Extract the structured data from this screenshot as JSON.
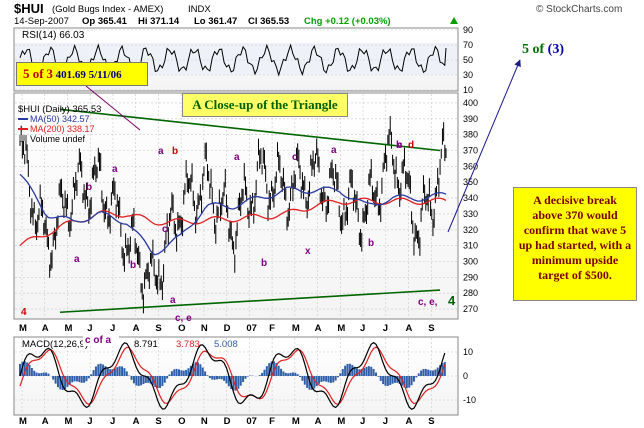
{
  "header": {
    "symbol": "$HUI",
    "name": "(Gold Bugs Index - AMEX)",
    "exchange": "INDX",
    "date": "14-Sep-2007",
    "open": "Op 365.41",
    "high": "Hi 371.14",
    "low": "Lo 361.47",
    "close": "Cl 365.53",
    "change": "Chg +0.12 (+0.03%)",
    "source": "© StockCharts.com",
    "change_color": "#00a000"
  },
  "rsi_panel": {
    "label": "RSI(14) 66.03",
    "ticks": [
      "90",
      "70",
      "50",
      "30",
      "10"
    ]
  },
  "price_panel": {
    "legend_main": "$HUI (Daily) 365.53",
    "legend_ma50": "MA(50) 342.57",
    "legend_ma200": "MA(200) 338.17",
    "legend_volume": "Volume undef",
    "y_ticks": [
      "400",
      "390",
      "380",
      "370",
      "360",
      "350",
      "340",
      "330",
      "320",
      "310",
      "300",
      "290",
      "280",
      "270"
    ],
    "x_ticks": [
      "M",
      "A",
      "M",
      "J",
      "J",
      "A",
      "S",
      "O",
      "N",
      "D",
      "07",
      "F",
      "M",
      "A",
      "M",
      "J",
      "J",
      "A",
      "S"
    ]
  },
  "macd_panel": {
    "label": "MACD(12,26,9)",
    "v1": "8.791",
    "v2": "3.783",
    "v3": "5.008",
    "ticks": [
      "10",
      "0",
      "-10"
    ],
    "x_ticks": [
      "M",
      "A",
      "M",
      "J",
      "J",
      "A",
      "S",
      "O",
      "N",
      "D",
      "07",
      "F",
      "M",
      "A",
      "M",
      "J",
      "J",
      "A",
      "S"
    ]
  },
  "annotations": {
    "top_callout_wave": "5 of",
    "top_callout_num": "3",
    "top_callout_price": "401.69",
    "top_callout_date": "5/11/06",
    "title_box": "A Close-up of the Triangle",
    "right_box": "A decisive break above 370 would confirm that wave 5 up had started, with a minimum upside target of $500.",
    "wave_target": "5 of",
    "wave_target_num": "(3)",
    "wave_labels": [
      {
        "text": "4",
        "color": "#cc0000"
      },
      {
        "text": "a",
        "color": "#800080"
      },
      {
        "text": "b",
        "color": "#800080"
      },
      {
        "text": "a",
        "color": "#800080"
      },
      {
        "text": "b",
        "color": "#800080"
      },
      {
        "text": "a",
        "color": "#800080"
      },
      {
        "text": "c",
        "color": "#800080"
      },
      {
        "text": "b",
        "color": "#cc0000"
      },
      {
        "text": "a",
        "color": "#800080"
      },
      {
        "text": "c, e",
        "color": "#800080"
      },
      {
        "text": "a",
        "color": "#800080"
      },
      {
        "text": "b",
        "color": "#800080"
      },
      {
        "text": "c",
        "color": "#800080"
      },
      {
        "text": "x",
        "color": "#800080"
      },
      {
        "text": "a",
        "color": "#800080"
      },
      {
        "text": "b",
        "color": "#800080"
      },
      {
        "text": "b",
        "color": "#800080"
      },
      {
        "text": "c",
        "color": "#800080"
      },
      {
        "text": "d",
        "color": "#cc0000"
      },
      {
        "text": "c,  e,",
        "color": "#800080"
      },
      {
        "text": "4",
        "color": "#006000"
      }
    ],
    "macd_label": "c of a"
  },
  "colors": {
    "price_bars": "#000000",
    "ma50": "#2a3aa0",
    "ma200": "#e02020",
    "trendline": "#006400",
    "arrow": "#1a1a8a",
    "macd_line": "#000000",
    "signal_line": "#e02020",
    "histogram": "#2f5fa8",
    "grid": "#c8c8c8"
  },
  "chart_data": {
    "type": "line",
    "title": "$HUI (Gold Bugs Index - AMEX)",
    "xlabel": "",
    "ylabel": "",
    "x": [
      "2006-05",
      "2006-06",
      "2006-07",
      "2006-08",
      "2006-09",
      "2006-10",
      "2006-11",
      "2006-12",
      "2007-01",
      "2007-02",
      "2007-03",
      "2007-04",
      "2007-05",
      "2007-06",
      "2007-07",
      "2007-08",
      "2007-09"
    ],
    "series": [
      {
        "name": "$HUI (Daily) 365.53",
        "values": [
          370,
          310,
          345,
          350,
          315,
          285,
          335,
          350,
          320,
          355,
          345,
          355,
          340,
          330,
          370,
          320,
          365
        ]
      },
      {
        "name": "MA(50) 342.57",
        "values": [
          355,
          330,
          325,
          330,
          325,
          305,
          315,
          335,
          335,
          340,
          345,
          345,
          345,
          335,
          340,
          340,
          342
        ]
      },
      {
        "name": "MA(200) 338.17",
        "values": [
          310,
          318,
          325,
          330,
          330,
          325,
          325,
          326,
          327,
          328,
          330,
          335,
          338,
          338,
          338,
          338,
          338
        ]
      }
    ],
    "trendlines": [
      {
        "from": [
          "2006-05",
          396
        ],
        "to": [
          "2007-09",
          370
        ]
      },
      {
        "from": [
          "2006-05",
          268
        ],
        "to": [
          "2007-09",
          282
        ]
      }
    ],
    "ylim": [
      265,
      405
    ],
    "rsi": {
      "ylim": [
        10,
        90
      ],
      "last": 66.03
    },
    "macd": {
      "macd": 8.791,
      "signal": 3.783,
      "histogram": 5.008,
      "ylim": [
        -15,
        15
      ]
    },
    "grid": true,
    "legend": "top-left"
  }
}
